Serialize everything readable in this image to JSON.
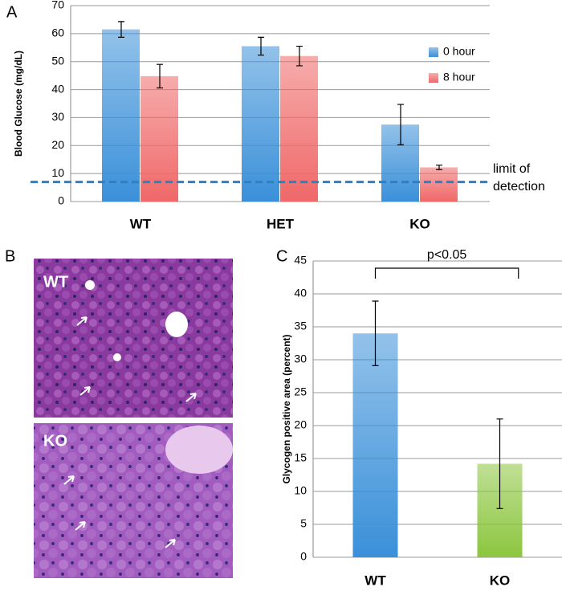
{
  "panel_labels": [
    "A",
    "B",
    "C"
  ],
  "micrograph_labels": [
    "WT",
    "KO"
  ],
  "chart_data": [
    {
      "type": "bar",
      "ylabel": "Blood Glucose (mg/dL)",
      "categories": [
        "WT",
        "HET",
        "KO"
      ],
      "series": [
        {
          "name": "0 hour",
          "color": "#3a90d9",
          "values": [
            61.5,
            55.5,
            27.5
          ],
          "errors": [
            2.8,
            3.2,
            7.2
          ]
        },
        {
          "name": "8 hour",
          "color": "#f06868",
          "values": [
            44.8,
            52,
            12.2
          ],
          "errors": [
            4.2,
            3.5,
            0.8
          ]
        }
      ],
      "ylim": [
        0,
        70
      ],
      "yticks": [
        0,
        10,
        20,
        30,
        40,
        50,
        60,
        70
      ],
      "grid": true,
      "legend": "right",
      "reference_line": {
        "value": 7,
        "label": "limit of detection",
        "color": "#2f7fc1"
      }
    },
    {
      "type": "bar",
      "ylabel": "Glycogen positive area (percent)",
      "categories": [
        "WT",
        "KO"
      ],
      "values": [
        34,
        14.2
      ],
      "errors": [
        4.9,
        6.8
      ],
      "colors": [
        "#3a90d9",
        "#8cc63f"
      ],
      "ylim": [
        0,
        45
      ],
      "yticks": [
        0,
        5,
        10,
        15,
        20,
        25,
        30,
        35,
        40,
        45
      ],
      "grid": true,
      "annotation": "p<0.05"
    }
  ]
}
